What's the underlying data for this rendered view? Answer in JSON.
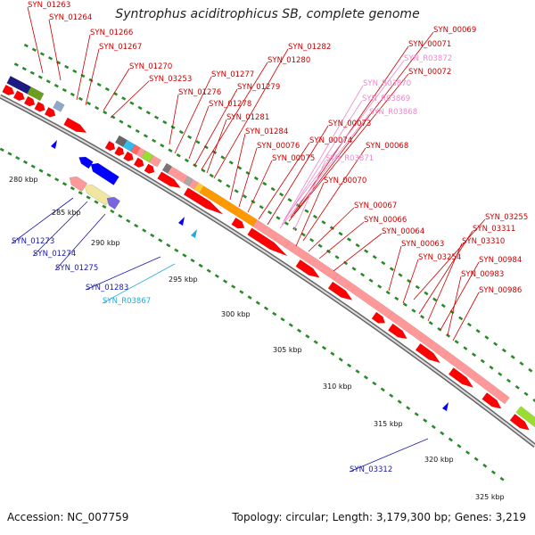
{
  "title": "Syntrophus aciditrophicus SB, complete genome",
  "footer": {
    "accession": "Accession: NC_007759",
    "stats": "Topology: circular; Length: 3,179,300 bp; Genes: 3,219"
  },
  "colors": {
    "forward_cds": "#ff0000",
    "reverse_cds": "#0000ff",
    "label_forward": "#cc0000",
    "label_reverse": "#1a1aa8",
    "label_rna": "#ee88cc",
    "label_cyan": "#22aadd",
    "backbone": "#999999",
    "tick_dots": "#2a8a2a",
    "orange_feature": "#ff9900",
    "pink_feature": "#ff9999"
  },
  "kbp_ticks": [
    "280 kbp",
    "285 kbp",
    "290 kbp",
    "295 kbp",
    "300 kbp",
    "305 kbp",
    "310 kbp",
    "315 kbp",
    "320 kbp",
    "325 kbp"
  ],
  "labels_forward": [
    "SYN_01263",
    "SYN_01264",
    "SYN_01266",
    "SYN_01267",
    "SYN_01270",
    "SYN_03253",
    "SYN_01276",
    "SYN_01277",
    "SYN_01278",
    "SYN_01279",
    "SYN_01280",
    "SYN_01281",
    "SYN_01282",
    "SYN_01284",
    "SYN_00076",
    "SYN_00075",
    "SYN_00074",
    "SYN_00073",
    "SYN_00068",
    "SYN_00070",
    "SYN_00067",
    "SYN_00066",
    "SYN_00064",
    "SYN_00063",
    "SYN_03254",
    "SYN_00069",
    "SYN_00071",
    "SYN_00072",
    "SYN_03255",
    "SYN_03311",
    "SYN_03310",
    "SYN_00984",
    "SYN_00983",
    "SYN_00986"
  ],
  "labels_rna": [
    "SYN_R03872",
    "SYN_R03870",
    "SYN_R03869",
    "SYN_R03868",
    "SYN_R03871"
  ],
  "labels_reverse": [
    "SYN_01273",
    "SYN_01274",
    "SYN_01275",
    "SYN_01283",
    "SYN_03312"
  ],
  "labels_cyan": [
    "SYN_R03867"
  ]
}
